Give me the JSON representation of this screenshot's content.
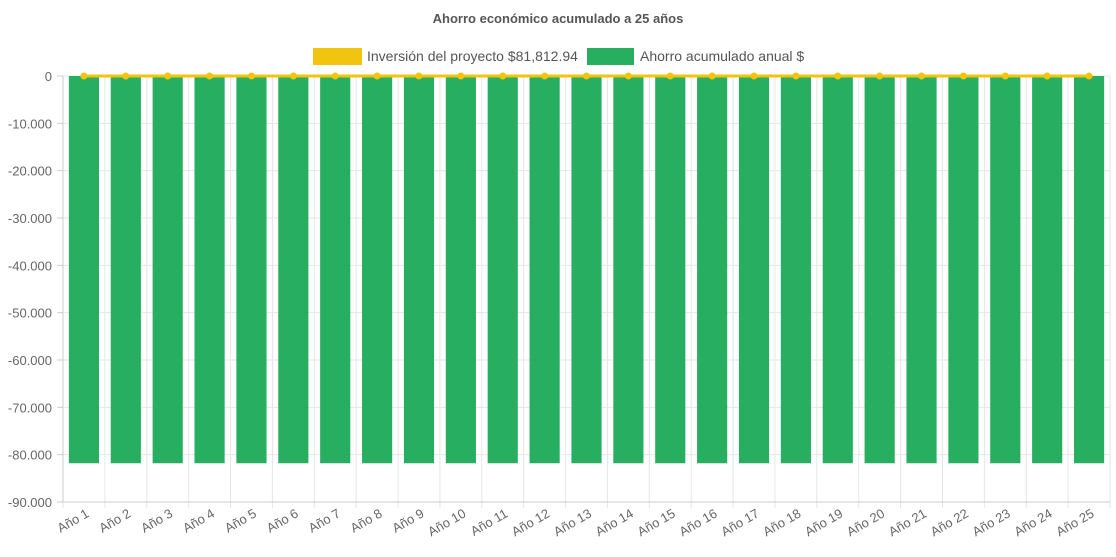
{
  "chart_data": {
    "type": "bar",
    "title": "Ahorro económico acumulado a 25 años",
    "legend_position": "top",
    "grid": true,
    "ylim": [
      -90000,
      0
    ],
    "y_ticks": [
      0,
      -10000,
      -20000,
      -30000,
      -40000,
      -50000,
      -60000,
      -70000,
      -80000,
      -90000
    ],
    "y_tick_labels": [
      "0",
      "-10.000",
      "-20.000",
      "-30.000",
      "-40.000",
      "-50.000",
      "-60.000",
      "-70.000",
      "-80.000",
      "-90.000"
    ],
    "categories": [
      "Año 1",
      "Año 2",
      "Año 3",
      "Año 4",
      "Año 5",
      "Año 6",
      "Año 7",
      "Año 8",
      "Año 9",
      "Año 10",
      "Año 11",
      "Año 12",
      "Año 13",
      "Año 14",
      "Año 15",
      "Año 16",
      "Año 17",
      "Año 18",
      "Año 19",
      "Año 20",
      "Año 21",
      "Año 22",
      "Año 23",
      "Año 24",
      "Año 25"
    ],
    "series": [
      {
        "name": "Inversión del proyecto $81,812.94",
        "type": "line",
        "color": "#f1c40f",
        "values": [
          0,
          0,
          0,
          0,
          0,
          0,
          0,
          0,
          0,
          0,
          0,
          0,
          0,
          0,
          0,
          0,
          0,
          0,
          0,
          0,
          0,
          0,
          0,
          0,
          0
        ]
      },
      {
        "name": "Ahorro acumulado anual $",
        "type": "bar",
        "color": "#27ae60",
        "values": [
          -81812.94,
          -81812.94,
          -81812.94,
          -81812.94,
          -81812.94,
          -81812.94,
          -81812.94,
          -81812.94,
          -81812.94,
          -81812.94,
          -81812.94,
          -81812.94,
          -81812.94,
          -81812.94,
          -81812.94,
          -81812.94,
          -81812.94,
          -81812.94,
          -81812.94,
          -81812.94,
          -81812.94,
          -81812.94,
          -81812.94,
          -81812.94,
          -81812.94
        ]
      }
    ]
  }
}
